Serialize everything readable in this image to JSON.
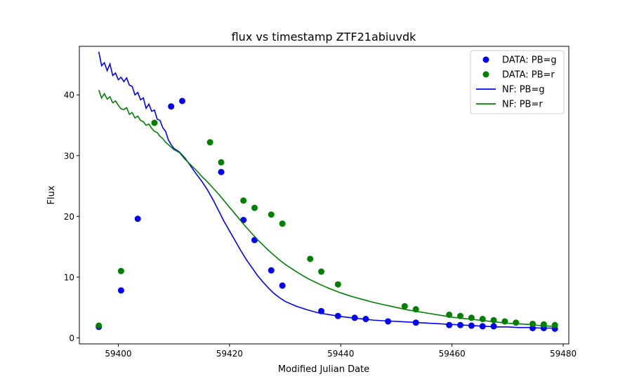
{
  "chart_data": {
    "type": "scatter",
    "title": "flux vs timestamp ZTF21abiuvdk",
    "xlabel": "Modified Julian Date",
    "ylabel": "Flux",
    "xlim": [
      59393,
      59481
    ],
    "ylim": [
      -1,
      48
    ],
    "xticks": [
      59400,
      59420,
      59440,
      59460,
      59480
    ],
    "yticks": [
      0,
      10,
      20,
      30,
      40
    ],
    "grid": false,
    "legend_position": "top-right",
    "series": [
      {
        "name": "DATA: PB=g",
        "kind": "scatter",
        "color": "#0000ff",
        "x": [
          59396.5,
          59400.5,
          59403.5,
          59409.5,
          59411.5,
          59418.5,
          59422.5,
          59424.5,
          59427.5,
          59429.5,
          59436.5,
          59439.5,
          59442.5,
          59444.5,
          59448.5,
          59453.5,
          59459.5,
          59461.5,
          59463.5,
          59465.5,
          59467.5,
          59474.5,
          59476.5,
          59478.5
        ],
        "y": [
          1.8,
          7.8,
          19.6,
          38.1,
          39.0,
          27.3,
          19.4,
          16.1,
          11.1,
          8.6,
          4.4,
          3.6,
          3.3,
          3.1,
          2.7,
          2.5,
          2.1,
          2.1,
          2.0,
          1.9,
          1.9,
          1.6,
          1.6,
          1.5
        ]
      },
      {
        "name": "DATA: PB=r",
        "kind": "scatter",
        "color": "#008000",
        "x": [
          59396.5,
          59400.5,
          59406.5,
          59416.5,
          59418.5,
          59422.5,
          59424.5,
          59427.5,
          59429.5,
          59434.5,
          59436.5,
          59439.5,
          59451.5,
          59453.5,
          59459.5,
          59461.5,
          59463.5,
          59465.5,
          59467.5,
          59469.5,
          59471.5,
          59474.5,
          59476.5,
          59478.5
        ],
        "y": [
          2.0,
          11.0,
          35.4,
          32.2,
          28.9,
          22.6,
          21.4,
          20.3,
          18.8,
          13.0,
          10.9,
          8.8,
          5.2,
          4.7,
          3.8,
          3.6,
          3.3,
          3.1,
          2.9,
          2.7,
          2.5,
          2.3,
          2.2,
          2.1
        ]
      },
      {
        "name": "NF: PB=g",
        "kind": "line",
        "color": "#0000ff",
        "x": [
          59396.5,
          59397.0,
          59397.5,
          59398.0,
          59398.5,
          59399.0,
          59399.5,
          59400.0,
          59400.5,
          59401.0,
          59401.5,
          59402.0,
          59402.5,
          59403.0,
          59403.5,
          59404.0,
          59404.5,
          59405.0,
          59405.5,
          59406.0,
          59406.5,
          59407.0,
          59407.5,
          59408.0,
          59408.5,
          59409.0,
          59409.5,
          59410.0,
          59411.0,
          59412.0,
          59413.0,
          59414.0,
          59415.0,
          59416.0,
          59417.0,
          59418.0,
          59419.0,
          59420.0,
          59421.0,
          59422.0,
          59423.0,
          59424.0,
          59425.0,
          59426.0,
          59427.0,
          59428.0,
          59429.0,
          59430.0,
          59432.0,
          59434.0,
          59436.0,
          59438.0,
          59440.0,
          59442.0,
          59444.0,
          59446.0,
          59448.0,
          59450.0,
          59452.0,
          59454.0,
          59456.0,
          59458.0,
          59460.0,
          59462.0,
          59464.0,
          59466.0,
          59468.0,
          59470.0,
          59472.0,
          59474.0,
          59476.0,
          59478.0
        ],
        "y": [
          47.1,
          44.8,
          45.3,
          44.0,
          45.1,
          43.2,
          43.6,
          42.5,
          42.9,
          42.2,
          42.8,
          41.6,
          41.4,
          40.0,
          40.4,
          39.2,
          39.5,
          37.8,
          38.5,
          37.3,
          37.5,
          36.0,
          35.8,
          34.6,
          34.0,
          32.6,
          31.8,
          31.2,
          30.6,
          29.6,
          28.3,
          27.0,
          25.8,
          24.4,
          22.8,
          21.0,
          19.2,
          17.6,
          16.0,
          14.4,
          12.9,
          11.6,
          10.3,
          9.2,
          8.2,
          7.3,
          6.6,
          6.0,
          5.2,
          4.6,
          4.1,
          3.8,
          3.5,
          3.3,
          3.1,
          2.9,
          2.8,
          2.7,
          2.6,
          2.5,
          2.4,
          2.3,
          2.2,
          2.1,
          2.0,
          1.9,
          1.8,
          1.8,
          1.7,
          1.7,
          1.6,
          1.6
        ]
      },
      {
        "name": "NF: PB=r",
        "kind": "line",
        "color": "#008000",
        "x": [
          59396.5,
          59397.0,
          59397.5,
          59398.0,
          59398.5,
          59399.0,
          59399.5,
          59400.0,
          59400.5,
          59401.0,
          59401.5,
          59402.0,
          59402.5,
          59403.0,
          59403.5,
          59404.0,
          59404.5,
          59405.0,
          59405.5,
          59406.0,
          59406.5,
          59407.0,
          59407.5,
          59408.0,
          59408.5,
          59409.0,
          59409.5,
          59410.0,
          59411.0,
          59412.0,
          59413.0,
          59414.0,
          59415.0,
          59416.0,
          59417.0,
          59418.0,
          59419.0,
          59420.0,
          59421.0,
          59422.0,
          59423.0,
          59424.0,
          59425.0,
          59426.0,
          59427.0,
          59428.0,
          59429.0,
          59430.0,
          59432.0,
          59434.0,
          59436.0,
          59438.0,
          59440.0,
          59442.0,
          59444.0,
          59446.0,
          59448.0,
          59450.0,
          59452.0,
          59454.0,
          59456.0,
          59458.0,
          59460.0,
          59462.0,
          59464.0,
          59466.0,
          59468.0,
          59470.0,
          59472.0,
          59474.0,
          59476.0,
          59478.0
        ],
        "y": [
          40.8,
          39.5,
          40.2,
          39.3,
          39.7,
          38.7,
          39.0,
          38.3,
          37.7,
          37.6,
          37.9,
          36.8,
          37.1,
          36.2,
          36.5,
          35.8,
          35.6,
          35.0,
          35.2,
          34.5,
          34.0,
          33.8,
          33.2,
          32.8,
          32.2,
          31.8,
          31.4,
          31.0,
          30.5,
          29.4,
          28.5,
          27.6,
          26.6,
          25.7,
          24.7,
          23.7,
          22.6,
          21.5,
          20.4,
          19.3,
          18.2,
          17.2,
          16.2,
          15.3,
          14.4,
          13.6,
          12.8,
          12.1,
          10.9,
          9.8,
          8.9,
          8.1,
          7.4,
          6.8,
          6.3,
          5.8,
          5.4,
          5.0,
          4.6,
          4.3,
          4.0,
          3.7,
          3.4,
          3.2,
          3.0,
          2.8,
          2.6,
          2.4,
          2.3,
          2.2,
          2.0,
          1.9
        ]
      }
    ]
  }
}
